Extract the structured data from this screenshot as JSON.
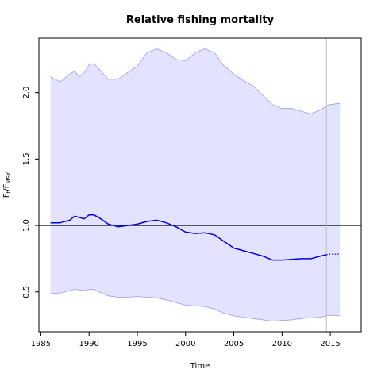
{
  "chart_data": {
    "type": "line",
    "title": "Relative fishing mortality",
    "xlabel": "Time",
    "ylabel": {
      "main": "F",
      "sub1": "t",
      "sep": "/F",
      "sub2": "MSY"
    },
    "xlim": [
      1984.8,
      2018.2
    ],
    "ylim": [
      0.2,
      2.41
    ],
    "xticks": [
      1985,
      1990,
      1995,
      2000,
      2005,
      2010,
      2015
    ],
    "yticks": [
      0.5,
      1.0,
      1.5,
      2.0
    ],
    "ytick_labels": [
      "0.5",
      "1.0",
      "1.5",
      "2.0"
    ],
    "reference_line_y": 1.0,
    "vertical_marker_x": 2014.6,
    "colors": {
      "estimate": "#0000dd",
      "band_fill": "#e3e3ff",
      "band_edge": "#9a9aee",
      "reference": "#000000",
      "marker": "#bbbbbb"
    },
    "series": [
      {
        "role": "estimate",
        "x": [
          1986,
          1987,
          1988,
          1988.5,
          1989,
          1989.5,
          1990,
          1990.5,
          1991,
          1992,
          1993,
          1994,
          1995,
          1996,
          1997,
          1998,
          1999,
          2000,
          2001,
          2002,
          2003,
          2004,
          2005,
          2006,
          2007,
          2008,
          2009,
          2010,
          2011,
          2012,
          2013,
          2014,
          2014.6
        ],
        "values": [
          1.02,
          1.02,
          1.04,
          1.07,
          1.06,
          1.05,
          1.08,
          1.08,
          1.06,
          1.01,
          0.99,
          1.0,
          1.01,
          1.03,
          1.04,
          1.02,
          0.99,
          0.95,
          0.94,
          0.945,
          0.93,
          0.88,
          0.83,
          0.81,
          0.79,
          0.77,
          0.74,
          0.74,
          0.745,
          0.75,
          0.75,
          0.77,
          0.78
        ]
      },
      {
        "role": "projection",
        "x": [
          2014.6,
          2015,
          2015.5,
          2016
        ],
        "values": [
          0.78,
          0.785,
          0.785,
          0.785
        ]
      },
      {
        "role": "upper_bound",
        "x": [
          1986,
          1987,
          1988,
          1988.5,
          1989,
          1989.5,
          1990,
          1990.5,
          1991,
          1992,
          1993,
          1994,
          1995,
          1996,
          1997,
          1998,
          1999,
          2000,
          2001,
          2002,
          2003,
          2004,
          2005,
          2006,
          2007,
          2008,
          2009,
          2010,
          2011,
          2012,
          2013,
          2014,
          2014.6,
          2015,
          2016
        ],
        "values": [
          2.12,
          2.08,
          2.14,
          2.16,
          2.12,
          2.15,
          2.21,
          2.22,
          2.18,
          2.1,
          2.1,
          2.15,
          2.2,
          2.3,
          2.33,
          2.3,
          2.25,
          2.24,
          2.3,
          2.33,
          2.3,
          2.2,
          2.14,
          2.09,
          2.05,
          1.98,
          1.91,
          1.88,
          1.88,
          1.86,
          1.84,
          1.87,
          1.9,
          1.91,
          1.92
        ]
      },
      {
        "role": "lower_bound",
        "x": [
          1986,
          1987,
          1988,
          1988.5,
          1989,
          1989.5,
          1990,
          1990.5,
          1991,
          1992,
          1993,
          1994,
          1995,
          1996,
          1997,
          1998,
          1999,
          2000,
          2001,
          2002,
          2003,
          2004,
          2005,
          2006,
          2007,
          2008,
          2009,
          2010,
          2011,
          2012,
          2013,
          2014,
          2014.6,
          2015,
          2016
        ],
        "values": [
          0.49,
          0.49,
          0.51,
          0.52,
          0.515,
          0.51,
          0.52,
          0.52,
          0.5,
          0.47,
          0.46,
          0.46,
          0.465,
          0.46,
          0.455,
          0.44,
          0.42,
          0.4,
          0.395,
          0.39,
          0.37,
          0.34,
          0.32,
          0.31,
          0.3,
          0.29,
          0.28,
          0.285,
          0.29,
          0.3,
          0.305,
          0.31,
          0.32,
          0.325,
          0.32
        ]
      }
    ]
  }
}
